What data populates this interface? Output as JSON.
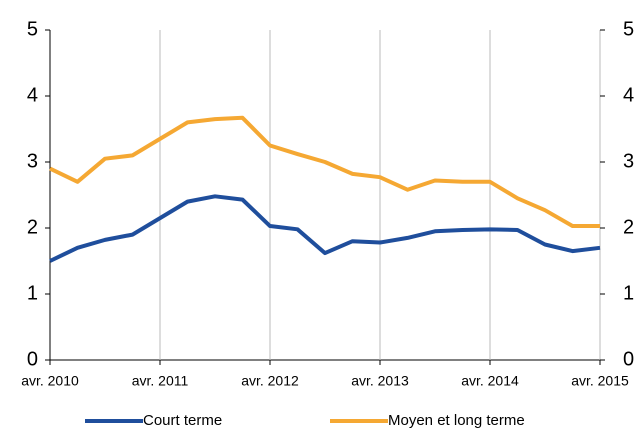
{
  "chart_data": {
    "type": "line",
    "categories": [
      "avr. 2010",
      null,
      null,
      null,
      "avr. 2011",
      null,
      null,
      null,
      "avr. 2012",
      null,
      null,
      null,
      "avr. 2013",
      null,
      null,
      null,
      "avr. 2014",
      null,
      null,
      null,
      "avr. 2015"
    ],
    "series": [
      {
        "name": "Court terme",
        "color": "#1f4e9c",
        "values": [
          1.5,
          1.7,
          1.82,
          1.9,
          2.15,
          2.4,
          2.48,
          2.43,
          2.03,
          1.98,
          1.62,
          1.8,
          1.78,
          1.85,
          1.95,
          1.97,
          1.98,
          1.97,
          1.75,
          1.65,
          1.7
        ]
      },
      {
        "name": "Moyen et long terme",
        "color": "#f5a833",
        "values": [
          2.9,
          2.7,
          3.05,
          3.1,
          3.35,
          3.6,
          3.65,
          3.67,
          3.25,
          3.12,
          3.0,
          2.82,
          2.77,
          2.58,
          2.72,
          2.7,
          2.7,
          2.45,
          2.27,
          2.03,
          2.03
        ]
      }
    ],
    "ylim": [
      0,
      5
    ],
    "yticks": [
      0,
      1,
      2,
      3,
      4,
      5
    ],
    "y2lim": [
      0,
      5
    ],
    "y2ticks": [
      0,
      1,
      2,
      3,
      4,
      5
    ],
    "grid": true,
    "legend": "bottom"
  }
}
